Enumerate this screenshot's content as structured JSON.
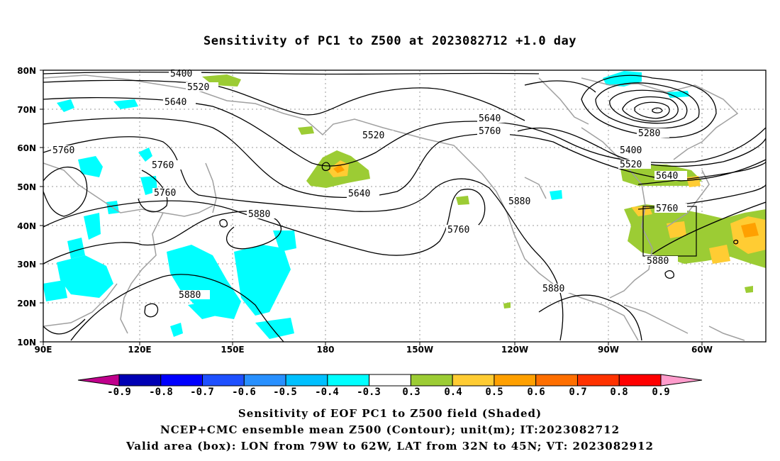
{
  "title": "Sensitivity of PC1 to Z500 at 2023082712 +1.0 day",
  "lat_labels": [
    "80N",
    "70N",
    "60N",
    "50N",
    "40N",
    "30N",
    "20N",
    "10N"
  ],
  "lon_labels": [
    "90E",
    "120E",
    "150E",
    "180",
    "150W",
    "120W",
    "90W",
    "60W"
  ],
  "contour_labels": [
    "5400",
    "5520",
    "5640",
    "5760",
    "5760",
    "5760",
    "5880",
    "5880",
    "5520",
    "5640",
    "5640",
    "5760",
    "5760",
    "5880",
    "5880",
    "5280",
    "5400",
    "5520",
    "5640",
    "5760",
    "5880"
  ],
  "colorbar": {
    "labels": [
      "-0.9",
      "-0.8",
      "-0.7",
      "-0.6",
      "-0.5",
      "-0.4",
      "-0.3",
      "0.3",
      "0.4",
      "0.5",
      "0.6",
      "0.7",
      "0.8",
      "0.9"
    ],
    "colors": [
      "#0000b4",
      "#0000ff",
      "#1e50ff",
      "#2890ff",
      "#00c0ff",
      "#00ffff",
      "#ffffff",
      "#9ccc34",
      "#ffcc33",
      "#ffa000",
      "#ff6f00",
      "#ff3200",
      "#ff0000"
    ],
    "left_arrow_color": "#c0008c",
    "right_arrow_color": "#ff9ccc"
  },
  "colors": {
    "contour": "#000000",
    "coastline": "#a0a0a0",
    "box": "#000000",
    "negative": "#00ffff",
    "positive": "#9ccc34",
    "positive_high": "#ffcc33",
    "positive_peak": "#ffa000"
  },
  "footer": {
    "line1": "Sensitivity of EOF PC1 to Z500 field (Shaded)",
    "line2": "NCEP+CMC ensemble mean Z500 (Contour); unit(m); IT:2023082712",
    "line3": "Valid area (box): LON from 79W to 62W, LAT from 32N to 45N; VT: 2023082912"
  }
}
